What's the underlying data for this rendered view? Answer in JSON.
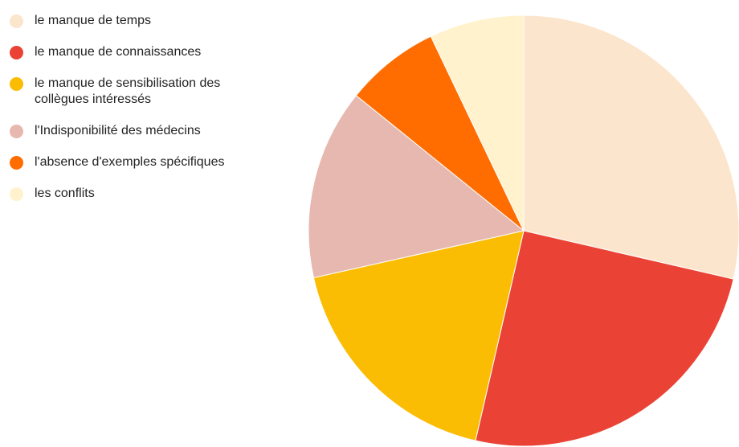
{
  "chart_data": {
    "type": "pie",
    "categories": [
      "le manque de temps",
      "le manque de connaissances",
      "le manque de sensibilisation des collègues intéressés",
      "l'Indisponibilité des médecins",
      "l'absence d'exemples spécifiques",
      "les conflits"
    ],
    "values": [
      28.6,
      25,
      17.9,
      14.3,
      7.1,
      7.1
    ],
    "colors": [
      "#fce5cd",
      "#ea4335",
      "#fbbc04",
      "#e6b8af",
      "#ff6d01",
      "#fff2cc"
    ],
    "legend": "left"
  }
}
